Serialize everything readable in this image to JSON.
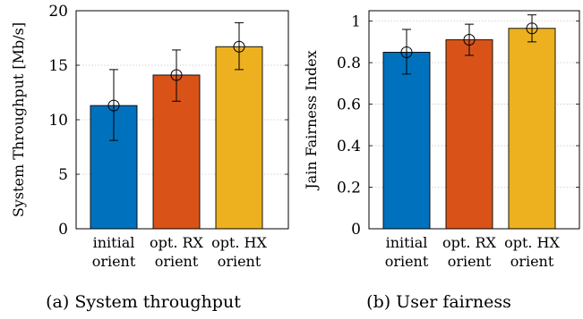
{
  "chart_data": [
    {
      "type": "bar",
      "caption": "(a) System throughput",
      "categories": [
        [
          "initial",
          "orient"
        ],
        [
          "opt. RX",
          "orient"
        ],
        [
          "opt. HX",
          "orient"
        ]
      ],
      "values": [
        11.3,
        14.1,
        16.7
      ],
      "error_low": [
        8.1,
        11.7,
        14.6
      ],
      "error_high": [
        14.6,
        16.4,
        18.9
      ],
      "colors": [
        "#0072bd",
        "#d95319",
        "#edb120"
      ],
      "ylabel": "System Throughput [Mb/s]",
      "xlabel": "",
      "ylim": [
        0,
        20
      ],
      "yticks": [
        "0",
        "5",
        "10",
        "15",
        "20"
      ],
      "ytick_values": [
        0,
        5,
        10,
        15,
        20
      ],
      "grid": true
    },
    {
      "type": "bar",
      "caption": "(b) User fairness",
      "categories": [
        [
          "initial",
          "orient"
        ],
        [
          "opt. RX",
          "orient"
        ],
        [
          "opt. HX",
          "orient"
        ]
      ],
      "values": [
        0.85,
        0.91,
        0.965
      ],
      "error_low": [
        0.745,
        0.835,
        0.9
      ],
      "error_high": [
        0.96,
        0.985,
        1.03
      ],
      "colors": [
        "#0072bd",
        "#d95319",
        "#edb120"
      ],
      "ylabel": "Jain Fairness Index",
      "xlabel": "",
      "ylim": [
        0,
        1.05
      ],
      "yticks": [
        "0",
        "0.2",
        "0.4",
        "0.6",
        "0.8",
        "1"
      ],
      "ytick_values": [
        0,
        0.2,
        0.4,
        0.6,
        0.8,
        1.0
      ],
      "grid": true
    }
  ]
}
